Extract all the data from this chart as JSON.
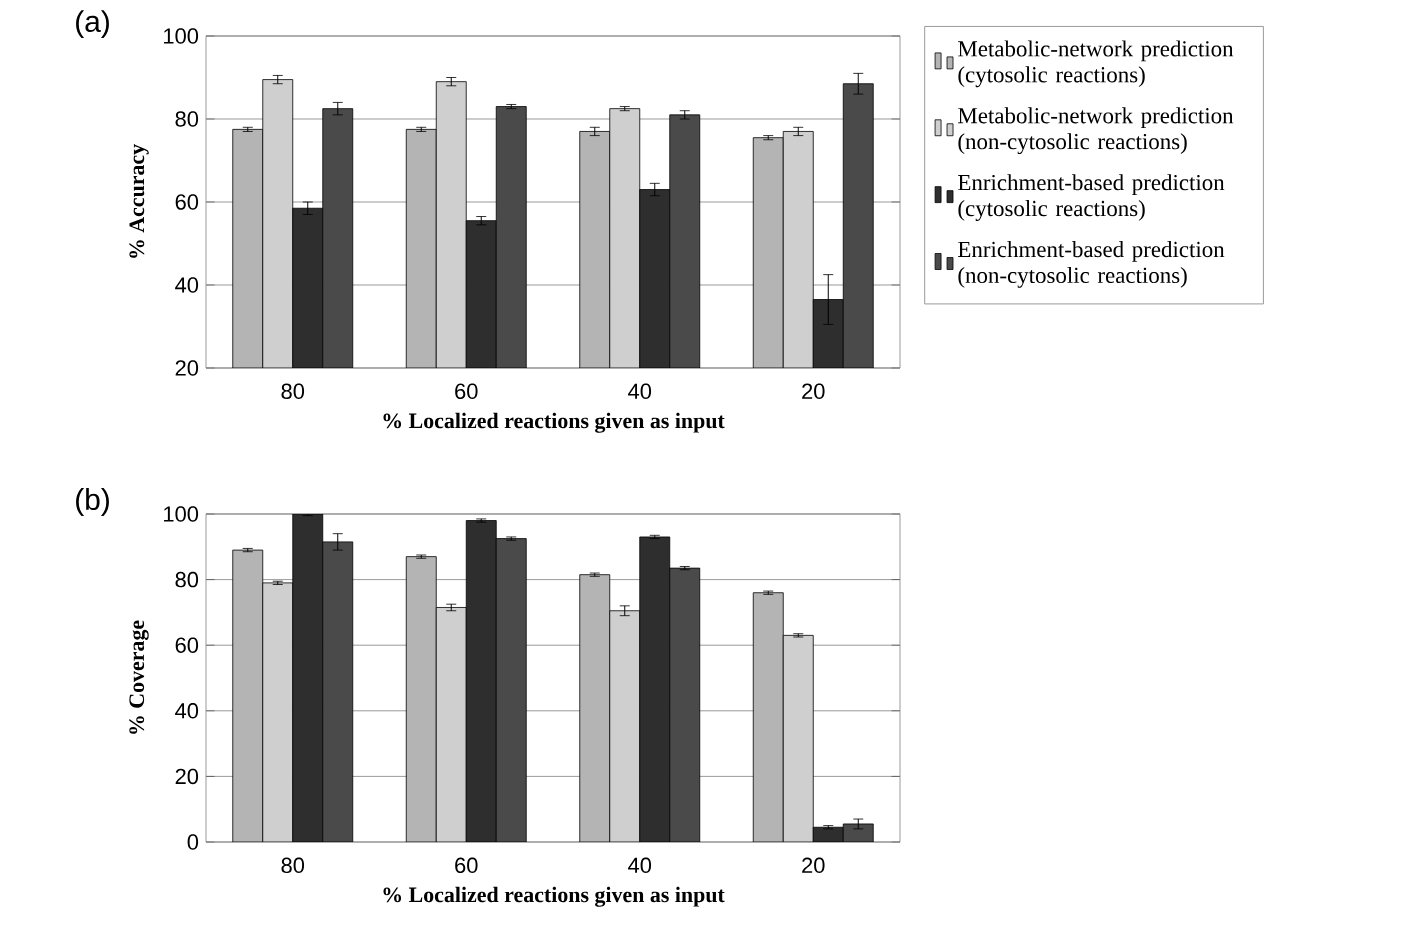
{
  "chart_data": [
    {
      "type": "bar",
      "title": "(a)",
      "xlabel": "% Localized reactions given as input",
      "ylabel": "% Accuracy",
      "categories": [
        "80",
        "60",
        "40",
        "20"
      ],
      "series": [
        {
          "name": "Metabolic-network prediction (cytosolic reactions)",
          "color": "#b4b4b4",
          "values": [
            77.5,
            77.5,
            77,
            75.5
          ],
          "errors": [
            0.5,
            0.5,
            1,
            0.5
          ]
        },
        {
          "name": "Metabolic-network prediction (non-cytosolic reactions)",
          "color": "#cfcfcf",
          "values": [
            89.5,
            89,
            82.5,
            77
          ],
          "errors": [
            1,
            1,
            0.5,
            1
          ]
        },
        {
          "name": "Enrichment-based prediction (cytosolic reactions)",
          "color": "#2e2e2e",
          "values": [
            58.5,
            55.5,
            63,
            36.5
          ],
          "errors": [
            1.5,
            1,
            1.5,
            6
          ]
        },
        {
          "name": "Enrichment-based prediction (non-cytosolic reactions)",
          "color": "#4a4a4a",
          "values": [
            82.5,
            83,
            81,
            88.5
          ],
          "errors": [
            1.5,
            0.5,
            1,
            2.5
          ]
        }
      ],
      "ylim": [
        20,
        100
      ],
      "yticks": [
        20,
        40,
        60,
        80,
        100
      ],
      "grid": "y",
      "legend": "right"
    },
    {
      "type": "bar",
      "title": "(b)",
      "xlabel": "% Localized reactions given as input",
      "ylabel": "% Coverage",
      "categories": [
        "80",
        "60",
        "40",
        "20"
      ],
      "series": [
        {
          "color": "#b4b4b4",
          "values": [
            89,
            87,
            81.5,
            76
          ],
          "errors": [
            0.5,
            0.5,
            0.5,
            0.5
          ]
        },
        {
          "color": "#cfcfcf",
          "values": [
            79,
            71.5,
            70.5,
            63
          ],
          "errors": [
            0.5,
            1,
            1.5,
            0.5
          ]
        },
        {
          "color": "#2e2e2e",
          "values": [
            100,
            98,
            93,
            4.5
          ],
          "errors": [
            0.5,
            0.5,
            0.5,
            0.5
          ]
        },
        {
          "color": "#4a4a4a",
          "values": [
            91.5,
            92.5,
            83.5,
            5.5
          ],
          "errors": [
            2.5,
            0.5,
            0.5,
            1.5
          ]
        }
      ],
      "ylim": [
        0,
        100
      ],
      "yticks": [
        0,
        20,
        40,
        60,
        80,
        100
      ],
      "grid": "y"
    }
  ]
}
